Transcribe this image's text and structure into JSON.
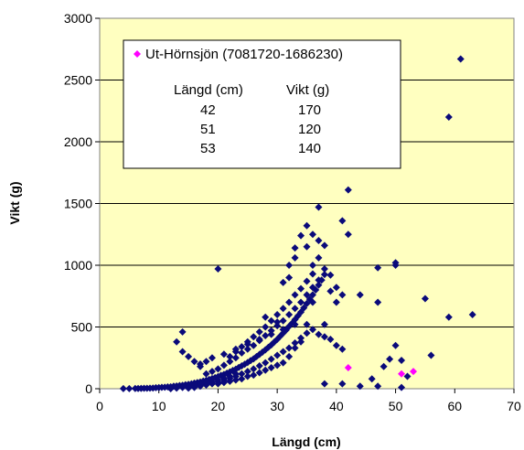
{
  "chart_data": {
    "type": "scatter",
    "xlabel": "Längd (cm)",
    "ylabel": "Vikt (g)",
    "xlim": [
      0,
      70
    ],
    "ylim": [
      0,
      3000
    ],
    "x_ticks": [
      "0",
      "10",
      "20",
      "30",
      "40",
      "50",
      "60",
      "70"
    ],
    "y_ticks": [
      "0",
      "500",
      "1000",
      "1500",
      "2000",
      "2500",
      "3000"
    ],
    "grid": "horizontal",
    "background_color": "#FFFFC0",
    "legend_position": "top-left",
    "series": [
      {
        "color": "#0A0A7A",
        "marker": "diamond",
        "points": [
          [
            4,
            1
          ],
          [
            5,
            1
          ],
          [
            6,
            2
          ],
          [
            6.5,
            2
          ],
          [
            7,
            3
          ],
          [
            7.5,
            4
          ],
          [
            8,
            4
          ],
          [
            8.5,
            5
          ],
          [
            9,
            6
          ],
          [
            9.5,
            8
          ],
          [
            10,
            9
          ],
          [
            10.5,
            11
          ],
          [
            11,
            12
          ],
          [
            11.5,
            15
          ],
          [
            12,
            16
          ],
          [
            12.5,
            20
          ],
          [
            13,
            22
          ],
          [
            13.5,
            26
          ],
          [
            14,
            28
          ],
          [
            14.5,
            32
          ],
          [
            15,
            35
          ],
          [
            15.5,
            40
          ],
          [
            16,
            45
          ],
          [
            16.5,
            50
          ],
          [
            17,
            55
          ],
          [
            17.5,
            62
          ],
          [
            18,
            68
          ],
          [
            18.5,
            75
          ],
          [
            19,
            82
          ],
          [
            19.5,
            90
          ],
          [
            20,
            98
          ],
          [
            20.5,
            108
          ],
          [
            21,
            116
          ],
          [
            21.5,
            126
          ],
          [
            22,
            136
          ],
          [
            22.5,
            148
          ],
          [
            23,
            158
          ],
          [
            23.5,
            172
          ],
          [
            24,
            185
          ],
          [
            24.5,
            198
          ],
          [
            25,
            212
          ],
          [
            25.5,
            228
          ],
          [
            26,
            242
          ],
          [
            26.5,
            260
          ],
          [
            27,
            278
          ],
          [
            27.5,
            296
          ],
          [
            28,
            315
          ],
          [
            28.5,
            335
          ],
          [
            29,
            355
          ],
          [
            29.5,
            378
          ],
          [
            30,
            400
          ],
          [
            30.5,
            425
          ],
          [
            31,
            450
          ],
          [
            31.5,
            475
          ],
          [
            32,
            505
          ],
          [
            32.5,
            530
          ],
          [
            33,
            560
          ],
          [
            33.5,
            590
          ],
          [
            34,
            620
          ],
          [
            34.5,
            655
          ],
          [
            35,
            690
          ],
          [
            35.5,
            725
          ],
          [
            36,
            760
          ],
          [
            36.5,
            800
          ],
          [
            37,
            840
          ],
          [
            37.5,
            880
          ],
          [
            38,
            925
          ],
          [
            15,
            5
          ],
          [
            16,
            10
          ],
          [
            17,
            20
          ],
          [
            18,
            30
          ],
          [
            19,
            40
          ],
          [
            20,
            55
          ],
          [
            21,
            70
          ],
          [
            22,
            85
          ],
          [
            23,
            100
          ],
          [
            24,
            120
          ],
          [
            25,
            140
          ],
          [
            26,
            160
          ],
          [
            27,
            185
          ],
          [
            28,
            210
          ],
          [
            29,
            240
          ],
          [
            30,
            270
          ],
          [
            31,
            300
          ],
          [
            32,
            330
          ],
          [
            33,
            370
          ],
          [
            34,
            410
          ],
          [
            35,
            450
          ],
          [
            18,
            120
          ],
          [
            19,
            140
          ],
          [
            20,
            160
          ],
          [
            21,
            190
          ],
          [
            22,
            220
          ],
          [
            23,
            250
          ],
          [
            24,
            290
          ],
          [
            25,
            320
          ],
          [
            26,
            350
          ],
          [
            27,
            390
          ],
          [
            28,
            430
          ],
          [
            29,
            470
          ],
          [
            30,
            510
          ],
          [
            31,
            550
          ],
          [
            32,
            600
          ],
          [
            33,
            650
          ],
          [
            34,
            700
          ],
          [
            35,
            760
          ],
          [
            36,
            820
          ],
          [
            37,
            880
          ],
          [
            22,
            260
          ],
          [
            23,
            300
          ],
          [
            24,
            340
          ],
          [
            25,
            380
          ],
          [
            26,
            420
          ],
          [
            27,
            460
          ],
          [
            28,
            500
          ],
          [
            29,
            550
          ],
          [
            30,
            600
          ],
          [
            31,
            650
          ],
          [
            32,
            700
          ],
          [
            33,
            760
          ],
          [
            34,
            810
          ],
          [
            35,
            870
          ],
          [
            36,
            930
          ],
          [
            20,
            40
          ],
          [
            21,
            50
          ],
          [
            22,
            60
          ],
          [
            23,
            70
          ],
          [
            24,
            80
          ],
          [
            25,
            100
          ],
          [
            26,
            110
          ],
          [
            27,
            130
          ],
          [
            28,
            150
          ],
          [
            29,
            170
          ],
          [
            30,
            190
          ],
          [
            31,
            210
          ],
          [
            12,
            0
          ],
          [
            13,
            5
          ],
          [
            14,
            10
          ],
          [
            15,
            15
          ],
          [
            16,
            25
          ],
          [
            17,
            35
          ],
          [
            18,
            45
          ],
          [
            19,
            55
          ],
          [
            20,
            70
          ],
          [
            21,
            85
          ],
          [
            22,
            100
          ],
          [
            23,
            120
          ],
          [
            17,
            200
          ],
          [
            18,
            220
          ],
          [
            19,
            250
          ],
          [
            21,
            280
          ],
          [
            23,
            320
          ],
          [
            25,
            360
          ],
          [
            27,
            400
          ],
          [
            29,
            440
          ],
          [
            31,
            480
          ],
          [
            33,
            520
          ],
          [
            13,
            380
          ],
          [
            14,
            460
          ],
          [
            14,
            300
          ],
          [
            15,
            260
          ],
          [
            16,
            220
          ],
          [
            17,
            180
          ],
          [
            20,
            970
          ],
          [
            28,
            580
          ],
          [
            30,
            540
          ],
          [
            31,
            860
          ],
          [
            32,
            900
          ],
          [
            32,
            1000
          ],
          [
            33,
            1060
          ],
          [
            33,
            1140
          ],
          [
            34,
            1240
          ],
          [
            35,
            1150
          ],
          [
            35,
            1320
          ],
          [
            36,
            1250
          ],
          [
            36,
            1000
          ],
          [
            37,
            1470
          ],
          [
            37,
            1200
          ],
          [
            37,
            1060
          ],
          [
            36,
            700
          ],
          [
            38,
            1160
          ],
          [
            38,
            970
          ],
          [
            39,
            920
          ],
          [
            39,
            790
          ],
          [
            40,
            820
          ],
          [
            41,
            1360
          ],
          [
            42,
            1610
          ],
          [
            42,
            1250
          ],
          [
            41,
            760
          ],
          [
            40,
            700
          ],
          [
            38,
            520
          ],
          [
            38,
            420
          ],
          [
            39,
            400
          ],
          [
            40,
            350
          ],
          [
            41,
            320
          ],
          [
            35,
            520
          ],
          [
            36,
            480
          ],
          [
            37,
            440
          ],
          [
            34,
            380
          ],
          [
            33,
            330
          ],
          [
            32,
            260
          ],
          [
            38,
            40
          ],
          [
            41,
            40
          ],
          [
            44,
            20
          ],
          [
            46,
            80
          ],
          [
            47,
            20
          ],
          [
            48,
            180
          ],
          [
            49,
            240
          ],
          [
            50,
            350
          ],
          [
            51,
            230
          ],
          [
            51,
            10
          ],
          [
            52,
            100
          ],
          [
            50,
            1020
          ],
          [
            50,
            1000
          ],
          [
            47,
            980
          ],
          [
            44,
            760
          ],
          [
            47,
            700
          ],
          [
            55,
            730
          ],
          [
            56,
            270
          ],
          [
            59,
            580
          ],
          [
            63,
            600
          ],
          [
            59,
            2200
          ],
          [
            61,
            2670
          ]
        ]
      },
      {
        "color": "#FF00FF",
        "marker": "diamond",
        "points": [
          [
            42,
            170
          ],
          [
            51,
            120
          ],
          [
            53,
            140
          ]
        ]
      }
    ],
    "legend": {
      "entry": "Ut-Hörnsjön (7081720-1686230)",
      "color": "#FF00FF",
      "table_headers": [
        "Längd (cm)",
        "Vikt (g)"
      ],
      "table_rows": [
        [
          "42",
          "170"
        ],
        [
          "51",
          "120"
        ],
        [
          "53",
          "140"
        ]
      ]
    }
  }
}
